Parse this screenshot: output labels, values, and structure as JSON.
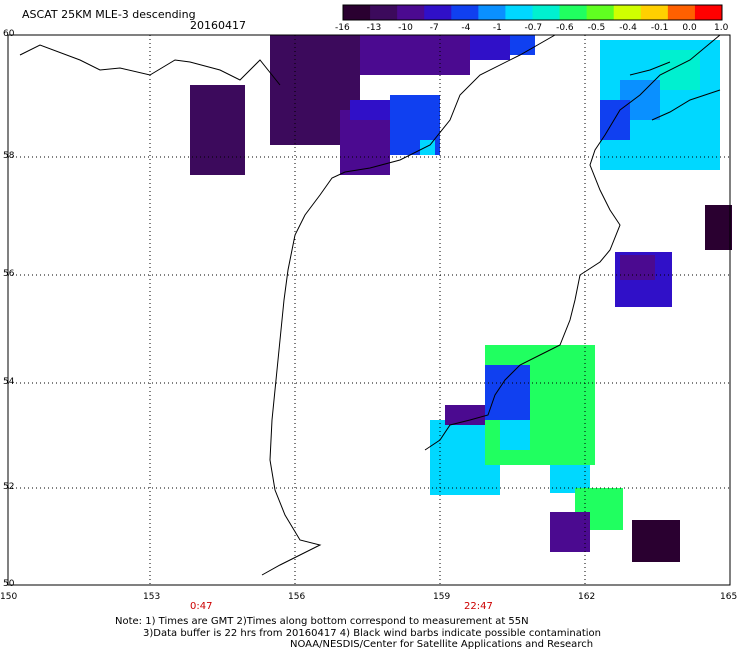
{
  "header": {
    "title": "ASCAT 25KM MLE-3 descending",
    "date": "20160417"
  },
  "colorbar": {
    "labels": [
      "-16",
      "-13",
      "-10",
      "-7",
      "-4",
      "-1",
      "-0.7",
      "-0.6",
      "-0.5",
      "-0.4",
      "-0.1",
      "0.0",
      "1.0"
    ],
    "colors": [
      "#2a0030",
      "#3c0a5c",
      "#4b0a90",
      "#3010c8",
      "#1040f0",
      "#0a90ff",
      "#00d8ff",
      "#00f0d0",
      "#20ff60",
      "#60ff20",
      "#d0ff00",
      "#ffd000",
      "#ff6000",
      "#ff0000"
    ]
  },
  "axes": {
    "x_labels": [
      "150",
      "153",
      "156",
      "159",
      "162",
      "165"
    ],
    "y_labels": [
      "60",
      "58",
      "56",
      "54",
      "52",
      "50"
    ]
  },
  "times": [
    "0:47",
    "22:47"
  ],
  "notes": {
    "line1": "Note: 1) Times are GMT 2)Times along bottom correspond to measurement at 55N",
    "line2": "3)Data buffer is 22 hrs from 20160417 4) Black wind barbs indicate possible contamination",
    "line3": "NOAA/NESDIS/Center for Satellite Applications and Research"
  }
}
